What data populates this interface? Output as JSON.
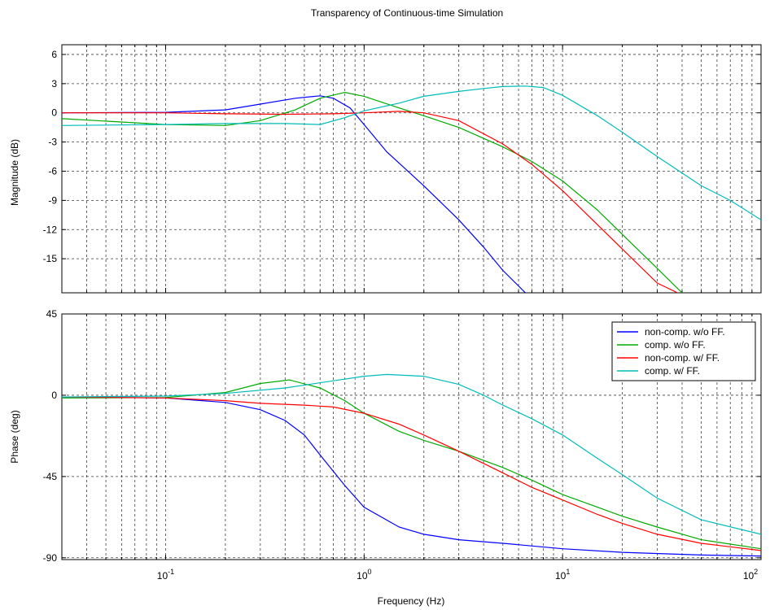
{
  "chart_data": {
    "type": "line",
    "title": "Transparency of Continuous-time Simulation",
    "xlabel": "Frequency (Hz)",
    "x_scale": "log",
    "xlim": [
      0.03,
      100
    ],
    "x_ticks": [
      {
        "value": 0.1,
        "base": "10",
        "exp": "-1"
      },
      {
        "value": 1,
        "base": "10",
        "exp": "0"
      },
      {
        "value": 10,
        "base": "10",
        "exp": "1"
      },
      {
        "value": 100,
        "base": "10",
        "exp": "2"
      }
    ],
    "grid": true,
    "legend": {
      "placement": "top-right",
      "panel": "phase"
    },
    "panels": [
      {
        "key": "magnitude",
        "ylabel": "Magnitude (dB)",
        "ylim": [
          -18.5,
          7
        ],
        "y_ticks": [
          6,
          3,
          0,
          -3,
          -6,
          -9,
          -12,
          -15
        ],
        "series": [
          {
            "name": "non-comp. w/o FF.",
            "color": "#0000ff",
            "x": [
              0.03,
              0.1,
              0.2,
              0.3,
              0.45,
              0.6,
              0.7,
              0.85,
              1,
              1.3,
              2,
              3,
              4,
              5,
              6.5
            ],
            "y": [
              0,
              0.05,
              0.3,
              0.9,
              1.5,
              1.75,
              1.5,
              0.5,
              -1.2,
              -4,
              -7.5,
              -11,
              -13.8,
              -16.2,
              -18.5
            ]
          },
          {
            "name": "comp. w/o FF.",
            "color": "#00aa00",
            "x": [
              0.03,
              0.1,
              0.2,
              0.3,
              0.45,
              0.6,
              0.8,
              1,
              1.5,
              2,
              3,
              5,
              7,
              10,
              15,
              20,
              30,
              40
            ],
            "y": [
              -0.6,
              -1.2,
              -1.3,
              -0.8,
              0.3,
              1.5,
              2.1,
              1.7,
              0.5,
              -0.3,
              -1.5,
              -3.5,
              -5,
              -7,
              -10,
              -12.5,
              -16,
              -18.5
            ]
          },
          {
            "name": "non-comp. w/ FF.",
            "color": "#ff0000",
            "x": [
              0.03,
              0.1,
              0.2,
              0.4,
              0.7,
              1,
              1.5,
              2,
              3,
              5,
              7,
              10,
              15,
              20,
              30,
              38
            ],
            "y": [
              0,
              0,
              -0.1,
              -0.15,
              -0.1,
              0,
              0.15,
              0,
              -0.8,
              -3.2,
              -5.3,
              -8,
              -11.5,
              -14,
              -17.5,
              -18.5
            ]
          },
          {
            "name": "comp. w/ FF.",
            "color": "#00bbbb",
            "x": [
              0.03,
              0.1,
              0.2,
              0.4,
              0.6,
              0.8,
              1,
              1.5,
              2,
              3,
              4,
              5,
              6.5,
              8,
              10,
              15,
              20,
              30,
              50,
              70,
              100
            ],
            "y": [
              -1.3,
              -1.2,
              -1.1,
              -1.1,
              -1.2,
              -0.5,
              0.2,
              1,
              1.7,
              2.2,
              2.5,
              2.7,
              2.75,
              2.6,
              1.8,
              -0.3,
              -2,
              -4.5,
              -7.5,
              -9,
              -11
            ]
          }
        ]
      },
      {
        "key": "phase",
        "ylabel": "Phase (deg)",
        "ylim": [
          -91,
          45
        ],
        "y_ticks": [
          45,
          0,
          -45,
          -90
        ],
        "series": [
          {
            "name": "non-comp. w/o FF.",
            "color": "#0000ff",
            "x": [
              0.03,
              0.1,
              0.2,
              0.3,
              0.4,
              0.5,
              0.6,
              0.8,
              1,
              1.5,
              2,
              3,
              5,
              10,
              20,
              50,
              100
            ],
            "y": [
              -1,
              -1.5,
              -4,
              -8,
              -14,
              -22,
              -33,
              -50,
              -62,
              -73,
              -77,
              -80,
              -82,
              -85,
              -87,
              -88.5,
              -89
            ]
          },
          {
            "name": "comp. w/o FF.",
            "color": "#00aa00",
            "x": [
              0.03,
              0.1,
              0.2,
              0.3,
              0.42,
              0.6,
              0.8,
              1,
              1.5,
              2,
              3,
              5,
              7,
              10,
              15,
              20,
              30,
              50,
              100
            ],
            "y": [
              -1.5,
              -1.3,
              1.5,
              6.5,
              8.5,
              4,
              -3,
              -10,
              -20,
              -25,
              -31,
              -40,
              -47,
              -55,
              -62,
              -67,
              -73,
              -80,
              -85
            ]
          },
          {
            "name": "non-comp. w/ FF.",
            "color": "#ff0000",
            "x": [
              0.03,
              0.1,
              0.2,
              0.3,
              0.5,
              0.7,
              1,
              1.5,
              2,
              3,
              5,
              7,
              10,
              15,
              20,
              30,
              50,
              100
            ],
            "y": [
              -1,
              -1.5,
              -3,
              -4.5,
              -5.5,
              -6.5,
              -10,
              -16,
              -22,
              -31,
              -43,
              -51,
              -58,
              -66,
              -71,
              -77,
              -82,
              -86
            ]
          },
          {
            "name": "comp. w/ FF.",
            "color": "#00bbbb",
            "x": [
              0.03,
              0.1,
              0.2,
              0.4,
              0.7,
              1,
              1.3,
              2,
              3,
              4,
              5,
              7,
              10,
              15,
              20,
              30,
              50,
              100
            ],
            "y": [
              -1,
              -0.5,
              1,
              4,
              8,
              10.5,
              11.5,
              10.5,
              6,
              0,
              -5.5,
              -13,
              -22,
              -35,
              -44,
              -57,
              -69,
              -77
            ]
          }
        ]
      }
    ]
  }
}
